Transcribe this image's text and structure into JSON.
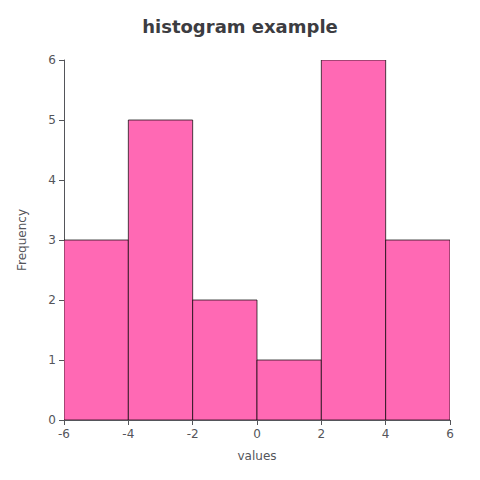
{
  "chart_data": {
    "type": "histogram",
    "title": "histogram example",
    "xlabel": "values",
    "ylabel": "Frequency",
    "bins": [
      -6,
      -4,
      -2,
      0,
      2,
      4,
      6
    ],
    "counts": [
      3,
      5,
      2,
      1,
      6,
      3
    ],
    "color": "#FF69B4",
    "xlim": [
      -6,
      6
    ],
    "xticks": [
      -6,
      -4,
      -2,
      0,
      2,
      4,
      6
    ],
    "ylim": [
      0,
      6
    ],
    "yticks": [
      0,
      1,
      2,
      3,
      4,
      5,
      6
    ],
    "grid": false
  }
}
